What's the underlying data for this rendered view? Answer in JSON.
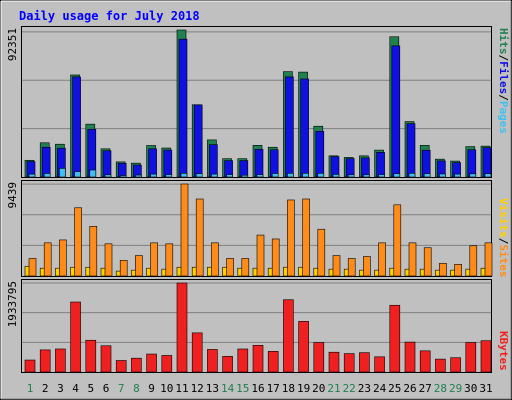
{
  "chart_data": {
    "type": "bar",
    "title": "Daily usage for July 2018",
    "categories": [
      "1",
      "2",
      "3",
      "4",
      "5",
      "6",
      "7",
      "8",
      "9",
      "10",
      "11",
      "12",
      "13",
      "14",
      "15",
      "16",
      "17",
      "18",
      "19",
      "20",
      "21",
      "22",
      "23",
      "24",
      "25",
      "26",
      "27",
      "28",
      "29",
      "30",
      "31"
    ],
    "weekend_days": [
      "1",
      "7",
      "8",
      "14",
      "15",
      "21",
      "22",
      "28",
      "29"
    ],
    "top_panel": {
      "max_label": "92351",
      "ylim": [
        0,
        92351
      ],
      "axis_label_parts": [
        "Pages",
        "/",
        "Files",
        "/",
        "Hits"
      ],
      "series": [
        {
          "name": "Hits",
          "color": "#208050",
          "values": [
            10500,
            21500,
            20600,
            64100,
            33200,
            17700,
            9500,
            8700,
            19800,
            18200,
            92351,
            45400,
            23300,
            11500,
            11500,
            19900,
            18700,
            66200,
            65900,
            31900,
            13300,
            12300,
            13300,
            16900,
            88100,
            34800,
            19900,
            11200,
            10000,
            19100,
            19400
          ]
        },
        {
          "name": "Files",
          "color": "#1010e0",
          "values": [
            9700,
            18700,
            18100,
            62900,
            30000,
            16500,
            8600,
            7500,
            17700,
            16900,
            86600,
            45300,
            20300,
            10300,
            10300,
            17400,
            17100,
            62900,
            61600,
            28700,
            12800,
            11500,
            12000,
            15500,
            82400,
            33500,
            16800,
            10100,
            9000,
            17100,
            18400
          ]
        },
        {
          "name": "Pages",
          "color": "#40c0f0",
          "values": [
            1800,
            2200,
            5400,
            3400,
            4400,
            1400,
            900,
            1200,
            1800,
            1500,
            2300,
            2100,
            1800,
            1500,
            1100,
            1500,
            2200,
            2300,
            2300,
            2300,
            1600,
            1400,
            1400,
            1500,
            2100,
            2300,
            2100,
            1900,
            1800,
            2000,
            2100
          ]
        }
      ]
    },
    "middle_panel": {
      "max_label": "9439",
      "ylim": [
        0,
        9439
      ],
      "axis_label_parts": [
        "Sites",
        "/",
        "Visits"
      ],
      "series": [
        {
          "name": "Visits",
          "color": "#ffd000",
          "values": [
            1000,
            800,
            800,
            900,
            900,
            800,
            500,
            600,
            800,
            700,
            900,
            900,
            900,
            900,
            800,
            800,
            800,
            900,
            900,
            800,
            700,
            700,
            600,
            600,
            800,
            700,
            700,
            600,
            600,
            700,
            800
          ]
        },
        {
          "name": "Sites",
          "color": "#ff8c18",
          "values": [
            1800,
            3400,
            3700,
            7000,
            5100,
            3300,
            1600,
            2100,
            3400,
            3300,
            9439,
            7900,
            3400,
            1800,
            1800,
            4200,
            3800,
            7800,
            7900,
            4800,
            2100,
            1800,
            2000,
            3400,
            7300,
            3400,
            2900,
            1300,
            1200,
            3100,
            3400
          ]
        }
      ]
    },
    "bottom_panel": {
      "max_label": "1933795",
      "ylim": [
        0,
        1933795
      ],
      "axis_label_parts": [
        "KBytes"
      ],
      "series": [
        {
          "name": "KBytes",
          "color": "#f02020",
          "values": [
            260000,
            480000,
            500000,
            1520000,
            690000,
            570000,
            250000,
            300000,
            390000,
            360000,
            1933795,
            850000,
            490000,
            340000,
            500000,
            580000,
            450000,
            1570000,
            1100000,
            640000,
            430000,
            400000,
            420000,
            330000,
            1450000,
            650000,
            460000,
            280000,
            310000,
            640000,
            680000
          ]
        }
      ]
    }
  }
}
